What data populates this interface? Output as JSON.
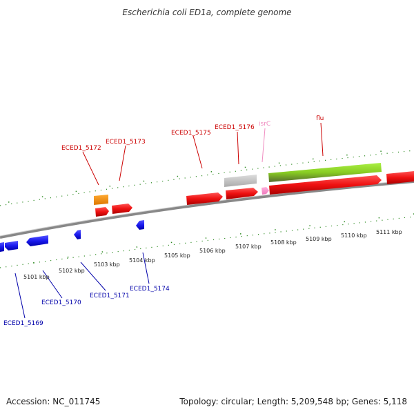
{
  "title": "Escherichia coli ED1a, complete genome",
  "footer": {
    "accession": "Accession: NC_011745",
    "summary": "Topology: circular; Length: 5,209,548 bp; Genes: 5,118"
  },
  "scale": {
    "labels": [
      "5101 kbp",
      "5102 kbp",
      "5103 kbp",
      "5104 kbp",
      "5105 kbp",
      "5106 kbp",
      "5107 kbp",
      "5108 kbp",
      "5109 kbp",
      "5110 kbp",
      "5111 kbp"
    ]
  },
  "genes": {
    "top": [
      {
        "label": "ECED1_5172",
        "color": "#cc0000"
      },
      {
        "label": "ECED1_5173",
        "color": "#cc0000"
      },
      {
        "label": "ECED1_5175",
        "color": "#cc0000"
      },
      {
        "label": "ECED1_5176",
        "color": "#cc0000"
      },
      {
        "label": "isrC",
        "color": "#f08cc0"
      },
      {
        "label": "flu",
        "color": "#cc0000"
      }
    ],
    "bottom": [
      {
        "label": "ECED1_5169",
        "color": "#0000aa"
      },
      {
        "label": "ECED1_5170",
        "color": "#0000aa"
      },
      {
        "label": "ECED1_5171",
        "color": "#0000aa"
      },
      {
        "label": "ECED1_5174",
        "color": "#0000aa"
      }
    ]
  },
  "colors": {
    "forward_cds": "#ee1111",
    "reverse_cds": "#1a1aee",
    "rna_gene": "#ff8ccc",
    "misc_feature": "#ff8c00",
    "pseudo_gene": "#bbbbbb",
    "repeat_region": "#88dd22",
    "backbone": "#888888",
    "ticks": "#2e8b22"
  }
}
